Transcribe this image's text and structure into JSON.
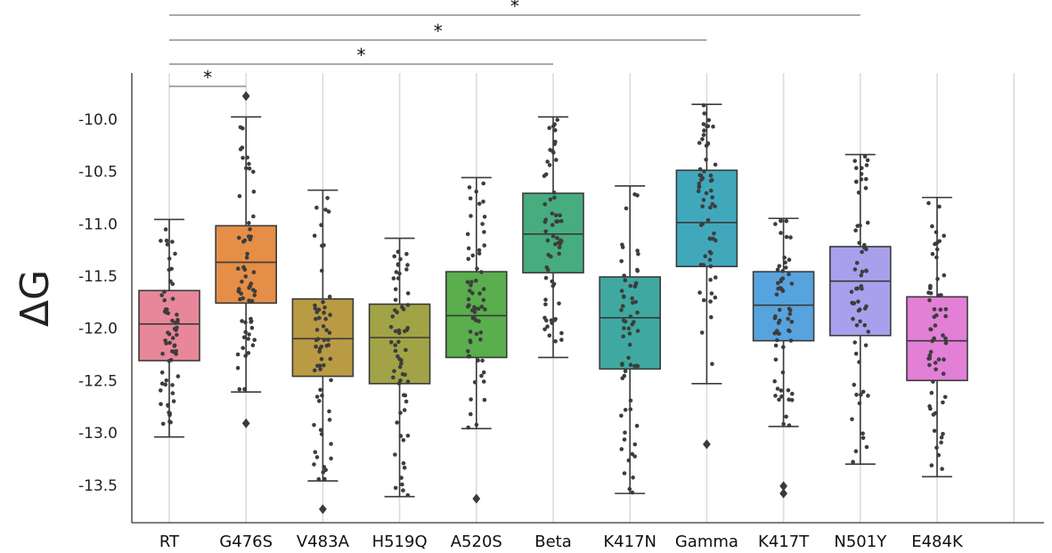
{
  "chart_data": {
    "type": "box",
    "title": "",
    "xlabel": "",
    "ylabel": "ΔG",
    "ylim": [
      -13.85,
      -9.55
    ],
    "yticks": [
      -10.0,
      -10.5,
      -11.0,
      -11.5,
      -12.0,
      -12.5,
      -13.0,
      -13.5
    ],
    "ytick_labels": [
      "-10.0",
      "-10.5",
      "-11.0",
      "-11.5",
      "-12.0",
      "-12.5",
      "-13.0",
      "-13.5"
    ],
    "grid": "vertical",
    "categories": [
      "RT",
      "G476S",
      "V483A",
      "H519Q",
      "A520S",
      "Beta",
      "K417N",
      "Gamma",
      "K417T",
      "N501Y",
      "E484K"
    ],
    "series": [
      {
        "name": "RT",
        "color": "#e8879a",
        "whislo": -13.03,
        "q1": -12.3,
        "median": -11.95,
        "q3": -11.63,
        "whishi": -10.95,
        "outliers": []
      },
      {
        "name": "G476S",
        "color": "#e58e47",
        "whislo": -12.6,
        "q1": -11.75,
        "median": -11.36,
        "q3": -11.01,
        "whishi": -9.97,
        "outliers": [
          -9.77,
          -12.9
        ]
      },
      {
        "name": "V483A",
        "color": "#b99b44",
        "whislo": -13.45,
        "q1": -12.45,
        "median": -12.09,
        "q3": -11.71,
        "whishi": -10.67,
        "outliers": [
          -13.72
        ]
      },
      {
        "name": "H519Q",
        "color": "#a2a346",
        "whislo": -13.6,
        "q1": -12.52,
        "median": -12.08,
        "q3": -11.76,
        "whishi": -11.13,
        "outliers": []
      },
      {
        "name": "A520S",
        "color": "#5aae4d",
        "whislo": -12.95,
        "q1": -12.27,
        "median": -11.87,
        "q3": -11.45,
        "whishi": -10.55,
        "outliers": [
          -13.62
        ]
      },
      {
        "name": "Beta",
        "color": "#47ac7e",
        "whislo": -12.27,
        "q1": -11.46,
        "median": -11.09,
        "q3": -10.7,
        "whishi": -9.97,
        "outliers": []
      },
      {
        "name": "K417N",
        "color": "#3fa9a1",
        "whislo": -13.57,
        "q1": -12.38,
        "median": -11.89,
        "q3": -11.5,
        "whishi": -10.63,
        "outliers": []
      },
      {
        "name": "Gamma",
        "color": "#41a8bc",
        "whislo": -12.52,
        "q1": -11.4,
        "median": -10.98,
        "q3": -10.48,
        "whishi": -9.85,
        "outliers": [
          -13.1
        ]
      },
      {
        "name": "K417T",
        "color": "#56a3de",
        "whislo": -12.93,
        "q1": -12.11,
        "median": -11.77,
        "q3": -11.45,
        "whishi": -10.94,
        "outliers": [
          -13.5,
          -13.57
        ]
      },
      {
        "name": "N501Y",
        "color": "#a8a0ec",
        "whislo": -13.29,
        "q1": -12.06,
        "median": -11.54,
        "q3": -11.21,
        "whishi": -10.33,
        "outliers": []
      },
      {
        "name": "E484K",
        "color": "#e27fd6",
        "whislo": -13.41,
        "q1": -12.49,
        "median": -12.11,
        "q3": -11.69,
        "whishi": -10.74,
        "outliers": []
      }
    ],
    "annotations": [
      {
        "from": "RT",
        "to": "G476S",
        "label": "*",
        "level": 1
      },
      {
        "from": "RT",
        "to": "Beta",
        "label": "*",
        "level": 2
      },
      {
        "from": "RT",
        "to": "Gamma",
        "label": "*",
        "level": 3
      },
      {
        "from": "RT",
        "to": "N501Y",
        "label": "*",
        "level": 4
      }
    ]
  }
}
